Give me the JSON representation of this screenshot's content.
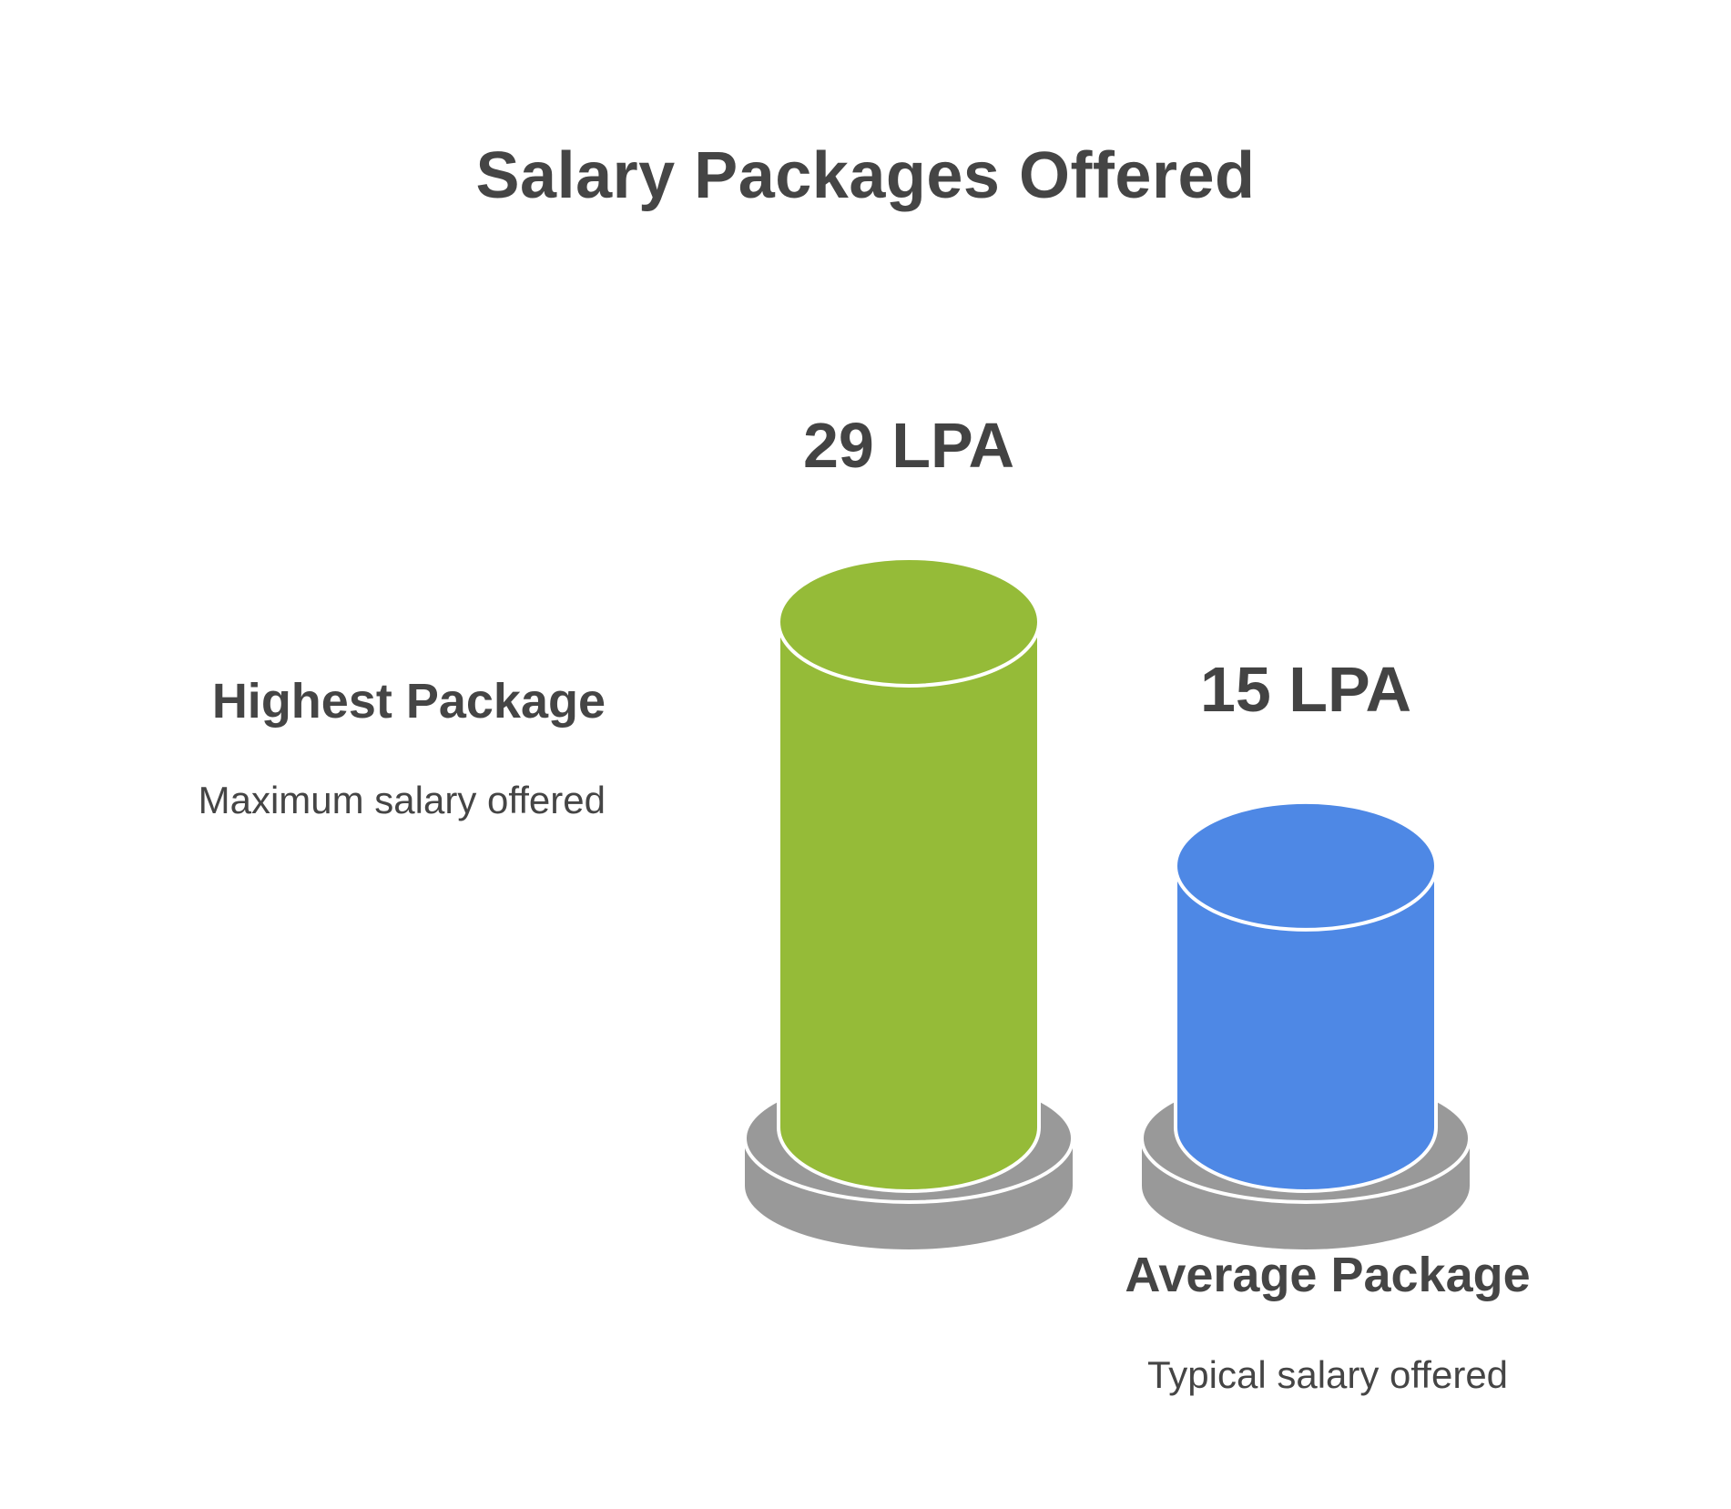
{
  "title": "Salary Packages Offered",
  "colors": {
    "text": "#454545",
    "base": "#999999",
    "base_edge": "#ffffff"
  },
  "chart_data": {
    "type": "bar",
    "title": "Salary Packages Offered",
    "unit": "LPA",
    "categories": [
      "Highest Package",
      "Average Package"
    ],
    "values": [
      29,
      15
    ],
    "series": [
      {
        "category": "Highest Package",
        "value": 29,
        "value_label": "29 LPA",
        "description": "Maximum salary offered",
        "color": "#95BB38"
      },
      {
        "category": "Average Package",
        "value": 15,
        "value_label": "15 LPA",
        "description": "Typical salary offered",
        "color": "#4E88E5"
      }
    ],
    "grid": false,
    "legend": "none"
  }
}
